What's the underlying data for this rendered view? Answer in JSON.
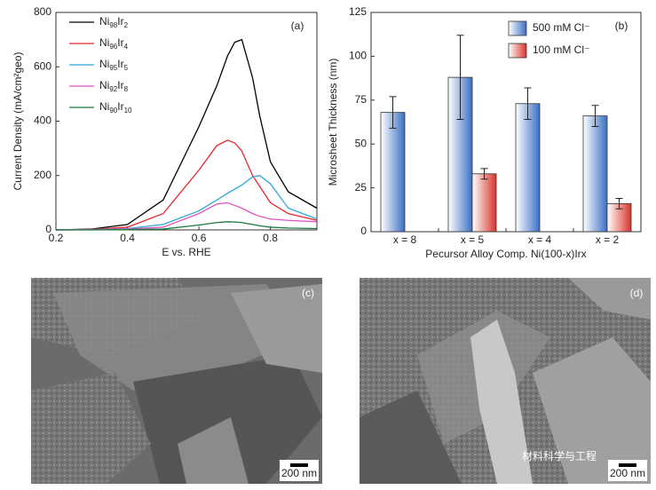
{
  "chart_data": [
    {
      "type": "line",
      "panel": "(a)",
      "xlabel": "E vs. RHE",
      "ylabel": "Current Density (mA/cm²geo)",
      "x": [
        0.2,
        0.3,
        0.4,
        0.5,
        0.6,
        0.65,
        0.68,
        0.7,
        0.72,
        0.75,
        0.77,
        0.8,
        0.85,
        0.93
      ],
      "xlim": [
        0.2,
        0.93
      ],
      "xticks": [
        0.2,
        0.4,
        0.6,
        0.8
      ],
      "ylim": [
        0,
        800
      ],
      "yticks": [
        0,
        200,
        400,
        600,
        800
      ],
      "series": [
        {
          "name": "Ni98Ir2",
          "color": "#000000",
          "values": [
            0,
            3,
            20,
            110,
            380,
            530,
            640,
            690,
            700,
            560,
            420,
            250,
            140,
            80
          ]
        },
        {
          "name": "Ni96Ir4",
          "color": "#e8262a",
          "values": [
            0,
            2,
            10,
            60,
            220,
            310,
            330,
            320,
            290,
            200,
            160,
            100,
            60,
            35
          ]
        },
        {
          "name": "Ni95Ir5",
          "color": "#2aa8de",
          "values": [
            0,
            1,
            5,
            20,
            70,
            110,
            135,
            150,
            165,
            195,
            200,
            170,
            80,
            40
          ]
        },
        {
          "name": "Ni92Ir8",
          "color": "#e055c0",
          "values": [
            0,
            1,
            3,
            10,
            60,
            95,
            100,
            90,
            80,
            60,
            50,
            40,
            35,
            30
          ]
        },
        {
          "name": "Ni90Ir10",
          "color": "#1a7a3a",
          "values": [
            0,
            0,
            1,
            3,
            18,
            27,
            30,
            29,
            27,
            20,
            15,
            10,
            7,
            5
          ]
        }
      ]
    },
    {
      "type": "bar",
      "panel": "(b)",
      "xlabel": "Pecursor Alloy Comp. Ni(100-x)Irx",
      "ylabel": "Microsheet Thickness (nm)",
      "categories": [
        "x = 8",
        "x = 5",
        "x = 4",
        "x = 2"
      ],
      "ylim": [
        0,
        125
      ],
      "yticks": [
        0,
        25,
        50,
        75,
        100,
        125
      ],
      "series": [
        {
          "name": "500 mM Cl⁻",
          "color": "#3a6fc4",
          "values": [
            68,
            88,
            73,
            66
          ],
          "errors": [
            9,
            24,
            9,
            6
          ]
        },
        {
          "name": "100 mM Cl⁻",
          "color": "#d9342b",
          "values": [
            null,
            33,
            null,
            16
          ],
          "errors": [
            null,
            3,
            null,
            3
          ]
        }
      ]
    }
  ],
  "images": [
    {
      "panel": "(c)",
      "scale_bar": "200 nm"
    },
    {
      "panel": "(d)",
      "scale_bar": "200 nm"
    }
  ],
  "watermark": "材料科学与工程"
}
